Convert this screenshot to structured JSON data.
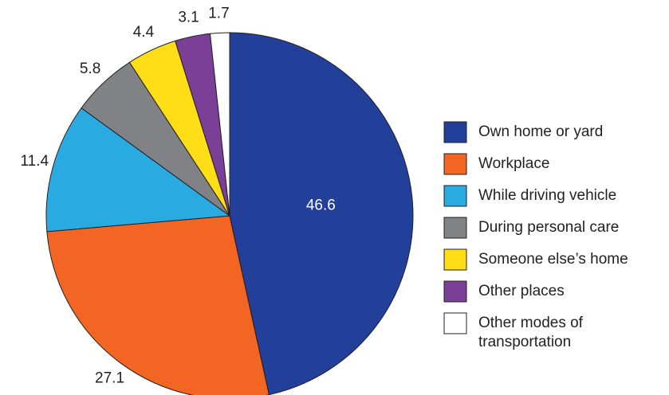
{
  "chart_data": {
    "type": "pie",
    "categories": [
      "Own home or yard",
      "Workplace",
      "While driving vehicle",
      "During personal care",
      "Someone else’s home",
      "Other places",
      "Other modes of transportation"
    ],
    "values": [
      46.6,
      27.1,
      11.4,
      5.8,
      4.4,
      3.1,
      1.7
    ],
    "colors": [
      "#22409a",
      "#f26522",
      "#29abe2",
      "#808285",
      "#ffde17",
      "#7b3f98",
      "#ffffff"
    ],
    "legend": "right"
  }
}
